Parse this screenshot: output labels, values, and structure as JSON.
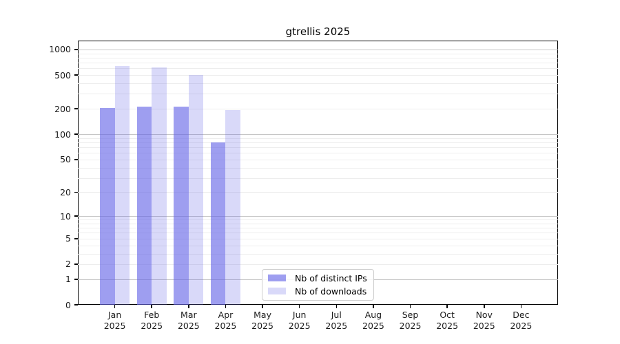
{
  "chart_data": {
    "type": "bar",
    "title": "gtrellis 2025",
    "categories": [
      "Jan",
      "Feb",
      "Mar",
      "Apr",
      "May",
      "Jun",
      "Jul",
      "Aug",
      "Sep",
      "Oct",
      "Nov",
      "Dec"
    ],
    "category_year": "2025",
    "series": [
      {
        "name": "Nb of distinct IPs",
        "color": "rgba(98,98,231,0.62)",
        "legend_color": "#a6a6ef",
        "values": [
          205,
          212,
          213,
          80,
          null,
          null,
          null,
          null,
          null,
          null,
          null,
          null
        ]
      },
      {
        "name": "Nb of downloads",
        "color": "rgba(98,98,231,0.24)",
        "legend_color": "#d9d9f8",
        "values": [
          640,
          610,
          500,
          195,
          null,
          null,
          null,
          null,
          null,
          null,
          null,
          null
        ]
      }
    ],
    "yscale": "log1p",
    "ylim": [
      0,
      1273
    ],
    "yticks": [
      0,
      1,
      2,
      5,
      10,
      20,
      50,
      100,
      200,
      500,
      1000
    ],
    "grid": {
      "major": [
        1,
        10,
        100,
        1000
      ],
      "minor": [
        2,
        3,
        4,
        5,
        6,
        7,
        8,
        9,
        20,
        30,
        40,
        50,
        60,
        70,
        80,
        90,
        200,
        300,
        400,
        500,
        600,
        700,
        800,
        900
      ]
    },
    "legend_position": "lower center-left inside plot",
    "colors": {
      "grid_major": "#c6c6c6",
      "grid_minor": "#ededed",
      "spine": "#000000",
      "text": "#1a1a1a"
    }
  }
}
